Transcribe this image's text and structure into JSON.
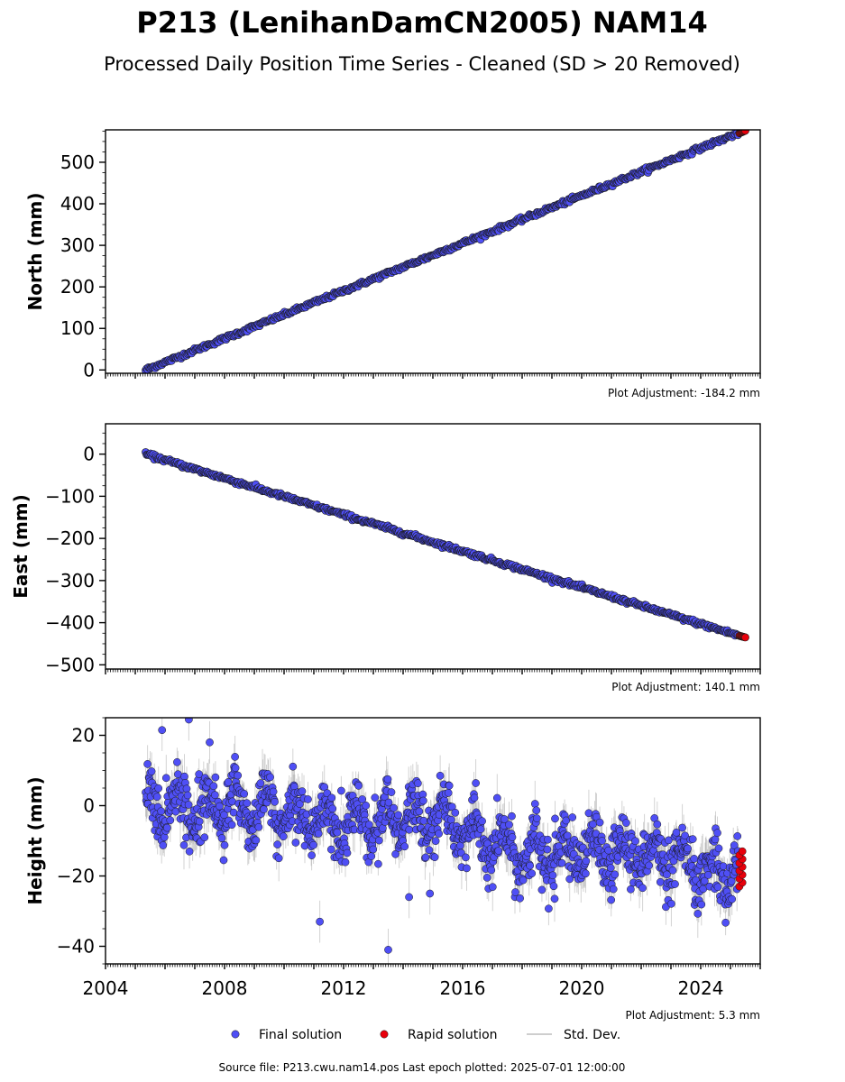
{
  "figure": {
    "title": "P213 (LenihanDamCN2005) NAM14",
    "subtitle": "Processed Daily Position Time Series - Cleaned (SD > 20 Removed)",
    "footer": "Source file: P213.cwu.nam14.pos  Last epoch plotted: 2025-07-01 12:00:00"
  },
  "legend": {
    "final_label": "Final solution",
    "rapid_label": "Rapid solution",
    "std_label": "Std. Dev.",
    "position": "bottom-center"
  },
  "colors": {
    "final": "#4f4ff5",
    "rapid": "#e8000b",
    "std": "#9e9e9e",
    "marker_edge": "#1a1a1a"
  },
  "chart_data": [
    {
      "type": "scatter",
      "ylabel": "North (mm)",
      "adjustment": "Plot Adjustment: -184.2 mm",
      "xlim": [
        2004,
        2026
      ],
      "ylim": [
        -8,
        578
      ],
      "yticks": [
        0,
        100,
        200,
        300,
        400,
        500
      ],
      "ytick_labels": [
        "0",
        "100",
        "200",
        "300",
        "400",
        "500"
      ],
      "show_xtick_labels": false,
      "final": {
        "start": [
          2005.35,
          0
        ],
        "end": [
          2025.25,
          570
        ],
        "noise_mm": 2.5
      },
      "rapid": {
        "start": [
          2025.3,
          570
        ],
        "end": [
          2025.5,
          576
        ]
      }
    },
    {
      "type": "scatter",
      "ylabel": "East (mm)",
      "adjustment": "Plot Adjustment: 140.1 mm",
      "xlim": [
        2004,
        2026
      ],
      "ylim": [
        -510,
        72
      ],
      "yticks": [
        0,
        -100,
        -200,
        -300,
        -400,
        -500
      ],
      "ytick_labels": [
        "0",
        "−100",
        "−200",
        "−300",
        "−400",
        "−500"
      ],
      "show_xtick_labels": false,
      "final": {
        "start": [
          2005.35,
          0
        ],
        "end": [
          2025.25,
          -430
        ],
        "noise_mm": 2.5
      },
      "rapid": {
        "start": [
          2025.3,
          -431
        ],
        "end": [
          2025.5,
          -435
        ]
      }
    },
    {
      "type": "scatter",
      "ylabel": "Height (mm)",
      "adjustment": "Plot Adjustment: 5.3 mm",
      "xlim": [
        2004,
        2026
      ],
      "ylim": [
        -45,
        25
      ],
      "yticks": [
        20,
        0,
        -20,
        -40
      ],
      "ytick_labels": [
        "20",
        "0",
        "−20",
        "−40"
      ],
      "show_xtick_labels": true,
      "xticks": [
        2004,
        2008,
        2012,
        2016,
        2020,
        2024
      ],
      "xtick_labels": [
        "2004",
        "2008",
        "2012",
        "2016",
        "2020",
        "2024"
      ],
      "final": {
        "x_range": [
          2005.35,
          2025.25
        ],
        "trend_by_year": [
          [
            2005.35,
            0
          ],
          [
            2008,
            0
          ],
          [
            2010,
            -2
          ],
          [
            2012,
            -5
          ],
          [
            2014,
            -4
          ],
          [
            2015.5,
            -3
          ],
          [
            2016.3,
            -9
          ],
          [
            2018,
            -14
          ],
          [
            2020,
            -14
          ],
          [
            2022,
            -13
          ],
          [
            2023,
            -16
          ],
          [
            2024,
            -19
          ],
          [
            2025.25,
            -18
          ]
        ],
        "seasonal_amplitude_mm": 5,
        "noise_mm": 4,
        "outliers": [
          [
            2005.9,
            21.5
          ],
          [
            2006.8,
            24.5
          ],
          [
            2007.5,
            18
          ],
          [
            2011.2,
            -33
          ],
          [
            2013.5,
            -41
          ],
          [
            2014.2,
            -26
          ],
          [
            2014.9,
            -25
          ]
        ]
      },
      "rapid": {
        "x_range": [
          2025.3,
          2025.5
        ],
        "y_range": [
          -23,
          -13
        ]
      }
    }
  ]
}
